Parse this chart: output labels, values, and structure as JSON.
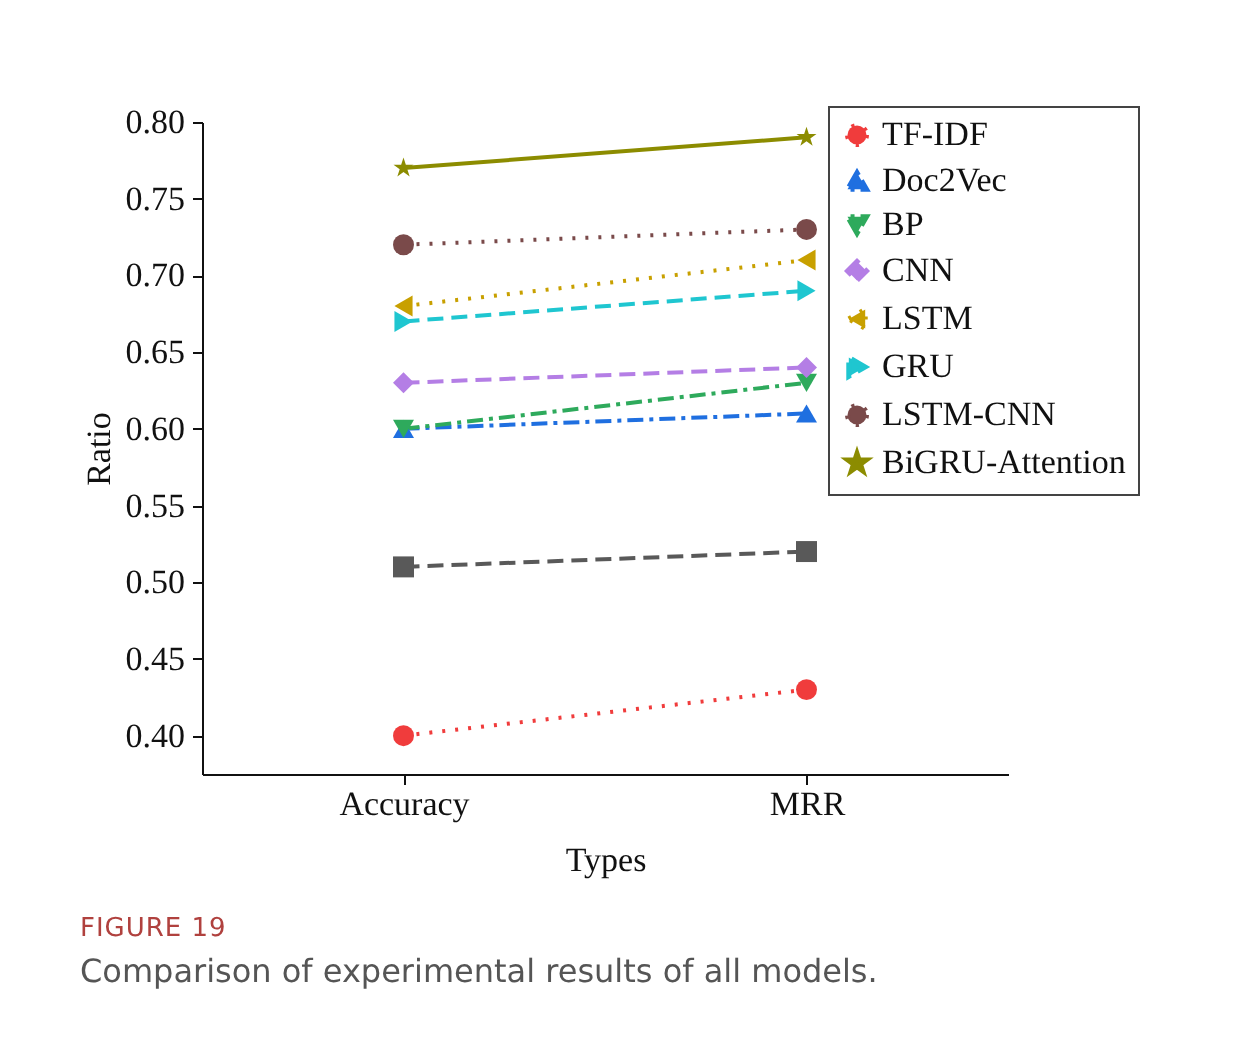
{
  "chart_data": {
    "type": "line",
    "xlabel": "Types",
    "ylabel": "Ratio",
    "categories": [
      "Accuracy",
      "MRR"
    ],
    "ylim": [
      0.375,
      0.8
    ],
    "yticks": [
      {
        "value": 0.4,
        "label": "0.40"
      },
      {
        "value": 0.45,
        "label": "0.45"
      },
      {
        "value": 0.5,
        "label": "0.50"
      },
      {
        "value": 0.55,
        "label": "0.55"
      },
      {
        "value": 0.6,
        "label": "0.60"
      },
      {
        "value": 0.65,
        "label": "0.65"
      },
      {
        "value": 0.7,
        "label": "0.70"
      },
      {
        "value": 0.75,
        "label": "0.75"
      },
      {
        "value": 0.8,
        "label": "0.80"
      }
    ],
    "grid": false,
    "legend": "top right",
    "series": [
      {
        "color": "#595959",
        "marker": "square",
        "line_style": "dashed",
        "values": [
          0.51,
          0.52
        ]
      },
      {
        "name": "TF-IDF",
        "color": "#f03c3c",
        "marker": "circle",
        "line_style": "dotted",
        "values": [
          0.4,
          0.43
        ]
      },
      {
        "name": "Doc2Vec",
        "color": "#1f6fe0",
        "marker": "triangle-up",
        "line_style": "dashdot",
        "values": [
          0.6,
          0.61
        ]
      },
      {
        "name": "BP",
        "color": "#2eaa5c",
        "marker": "triangle-down",
        "line_style": "dashdot",
        "values": [
          0.6,
          0.63
        ]
      },
      {
        "name": "CNN",
        "color": "#b47ee5",
        "marker": "diamond",
        "line_style": "dashed",
        "values": [
          0.63,
          0.64
        ]
      },
      {
        "name": "LSTM",
        "color": "#c8a000",
        "marker": "triangle-left",
        "line_style": "dotted",
        "values": [
          0.68,
          0.71
        ]
      },
      {
        "name": "GRU",
        "color": "#1fc6d0",
        "marker": "triangle-right",
        "line_style": "dashed",
        "values": [
          0.67,
          0.69
        ]
      },
      {
        "name": "LSTM-CNN",
        "color": "#7a4a4a",
        "marker": "circle",
        "line_style": "dotted",
        "values": [
          0.72,
          0.73
        ]
      },
      {
        "name": "BiGRU-Attention",
        "color": "#8c8c00",
        "marker": "star",
        "line_style": "solid",
        "values": [
          0.77,
          0.79
        ]
      }
    ],
    "annotations": [
      "FIGURE 19",
      "Comparison of experimental results of all models."
    ]
  }
}
